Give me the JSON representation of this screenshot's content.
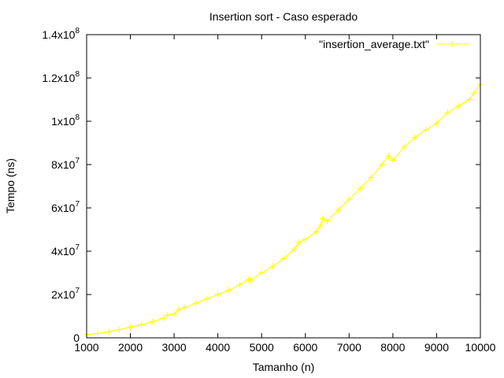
{
  "chart_data": {
    "type": "line",
    "title": "Insertion sort - Caso esperado",
    "xlabel": "Tamanho (n)",
    "ylabel": "Tempo (ns)",
    "xlim": [
      1000,
      10000
    ],
    "ylim": [
      0,
      140000000
    ],
    "x_ticks": [
      "1000",
      "2000",
      "3000",
      "4000",
      "5000",
      "6000",
      "7000",
      "8000",
      "9000",
      "10000"
    ],
    "y_ticks": [
      {
        "mantissa": "0",
        "exp": ""
      },
      {
        "mantissa": "2x10",
        "exp": "7"
      },
      {
        "mantissa": "4x10",
        "exp": "7"
      },
      {
        "mantissa": "6x10",
        "exp": "7"
      },
      {
        "mantissa": "8x10",
        "exp": "7"
      },
      {
        "mantissa": "1x10",
        "exp": "8"
      },
      {
        "mantissa": "1.2x10",
        "exp": "8"
      },
      {
        "mantissa": "1.4x10",
        "exp": "8"
      }
    ],
    "legend_position": "top-right",
    "grid": false,
    "series": [
      {
        "name": "\"insertion_average.txt\"",
        "color": "#ffff00",
        "marker": "plus",
        "x": [
          1000,
          1250,
          1500,
          1750,
          2000,
          2250,
          2500,
          2750,
          2850,
          3000,
          3100,
          3250,
          3500,
          3750,
          4000,
          4250,
          4500,
          4700,
          4750,
          5000,
          5250,
          5500,
          5750,
          5850,
          6000,
          6250,
          6350,
          6400,
          6500,
          6750,
          7000,
          7250,
          7500,
          7750,
          7900,
          8000,
          8250,
          8500,
          8750,
          9000,
          9250,
          9500,
          9750,
          9850,
          10000
        ],
        "y": [
          1500000,
          2000000,
          2800000,
          3800000,
          5000000,
          6000000,
          7400000,
          9000000,
          10500000,
          11000000,
          13000000,
          14000000,
          16000000,
          18000000,
          20000000,
          22000000,
          24500000,
          27000000,
          26500000,
          30000000,
          33000000,
          36500000,
          41000000,
          44000000,
          45500000,
          49000000,
          52000000,
          55000000,
          54000000,
          59000000,
          64000000,
          69000000,
          74000000,
          80000000,
          84000000,
          82000000,
          88000000,
          92500000,
          96000000,
          99000000,
          104000000,
          107000000,
          110000000,
          113000000,
          117000000
        ]
      }
    ]
  }
}
